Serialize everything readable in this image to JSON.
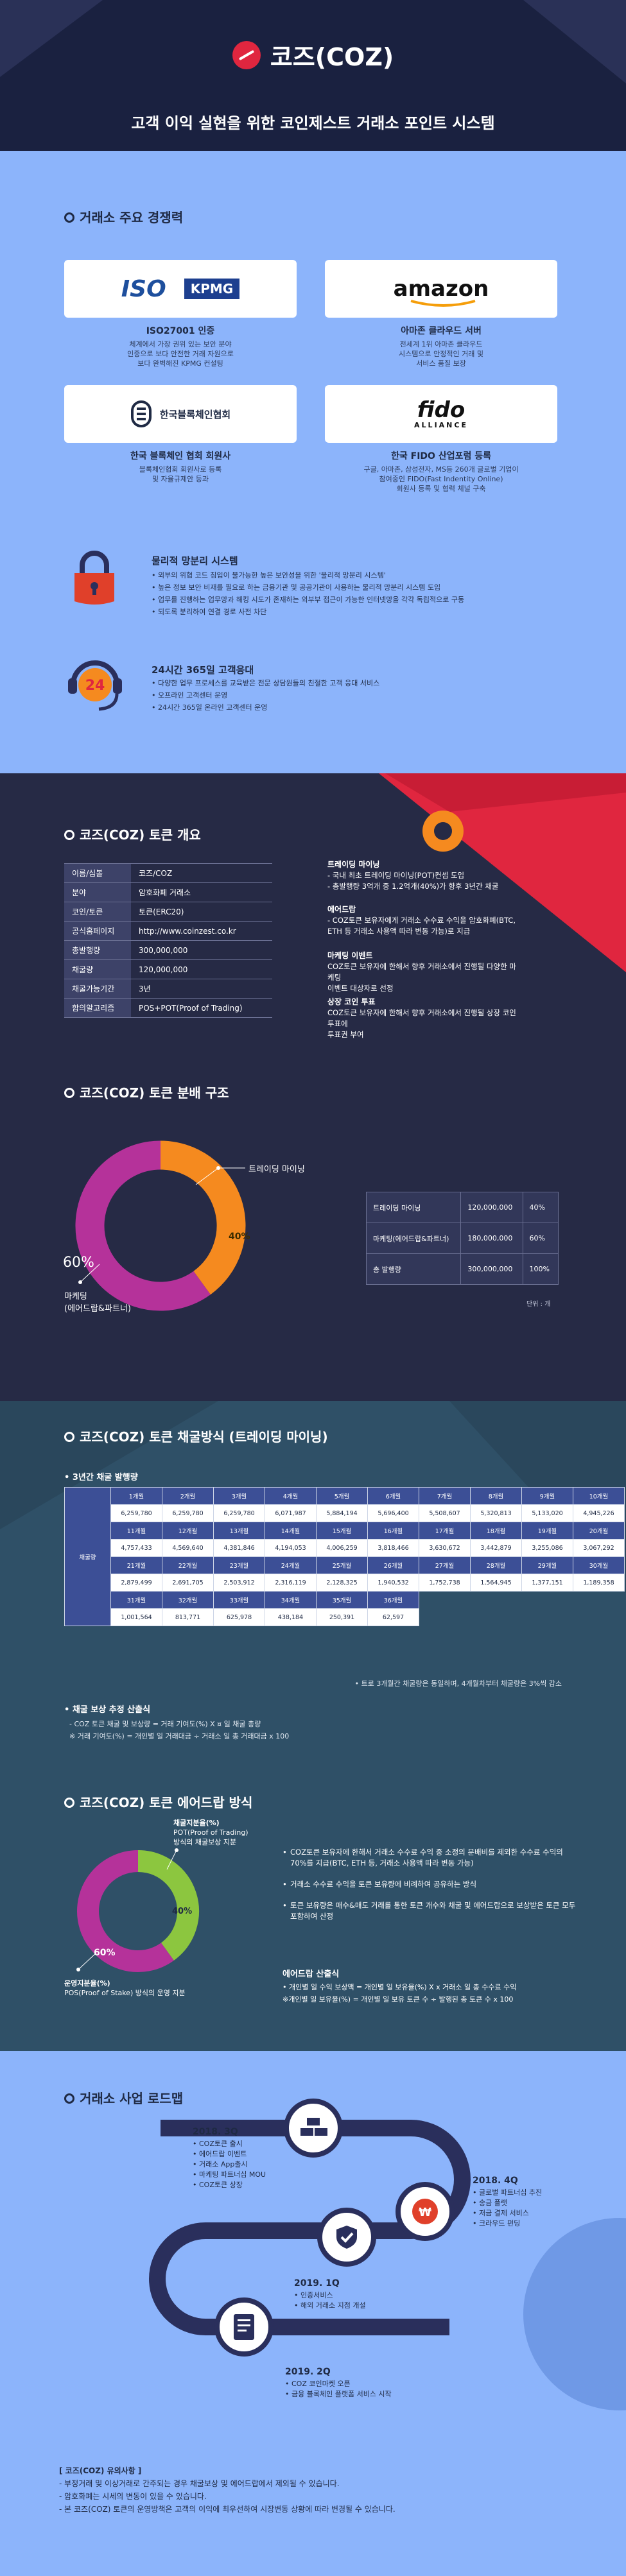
{
  "header": {
    "logo": "코즈(COZ)",
    "subtitle": "고객 이익 실현을 위한 코인제스트 거래소 포인트 시스템"
  },
  "exchange": {
    "title": "거래소 주요 경쟁력",
    "cards": [
      {
        "logo": "ISO",
        "logo2": "KPMG",
        "title": "ISO27001 인증",
        "desc": [
          "체계에서 가장 권위 있는 보안 분야",
          "인증으로 보다 안전한 거래 자원으로",
          "보다 완벽해진 KPMG 컨설팅"
        ]
      },
      {
        "logo": "amazon",
        "title": "아마존 클라우드 서버",
        "desc": [
          "전세계 1위 아마존 클라우드",
          "시스템으로 안정적인 거래 및",
          "서비스 품질 보장"
        ]
      },
      {
        "logo": "한국블록체인협회",
        "title": "한국 블록체인 협회 회원사",
        "desc": [
          "블록체인협회 회원사로 등록",
          "및 자율규제안 등과"
        ]
      },
      {
        "logo": "fido",
        "logo2": "ALLIANCE",
        "title": "한국 FIDO 산업포럼 등록",
        "desc": [
          "구글, 아마존, 삼성전자, MS등 260개 글로벌 기업이",
          "참여중인 FIDO(Fast Indentity Online)",
          "회원사 등록 및 협력 체널 구축"
        ]
      }
    ],
    "security": {
      "title": "물리적 망분리 시스템",
      "items": [
        "외부의 위협 코드 침입이 불가능한 높은 보안성을 위한 '물리적 망분리 시스템'",
        "높은 정보 보안 비재를 필요로 하는 금융기관 및 공공기관이 사용하는 물리적 망분리 시스템 도입",
        "업무를 진행하는 업무망과 해킹 시도가 존재하는 외부부 접근이 가능한 인터넷망을 각각 독립적으로 구동",
        "되도록 분리하여 연결 경로 사전 차단"
      ]
    },
    "support": {
      "title": "24시간 365일 고객응대",
      "badge": "24",
      "items": [
        "다양한 업무 프로세스를 교육받은 전문 상담원들의 친절한 고객 응대 서비스",
        "오프라인 고객센터 운영",
        "24시간 365일 온라인 고객센터 운영"
      ]
    }
  },
  "overview": {
    "title": "코즈(COZ) 토큰 개요",
    "rows": [
      {
        "k": "이름/심볼",
        "v": "코즈/COZ"
      },
      {
        "k": "분야",
        "v": "암호화폐 거래소"
      },
      {
        "k": "코인/토큰",
        "v": "토큰(ERC20)"
      },
      {
        "k": "공식홈페이지",
        "v": "http://www.coinzest.co.kr"
      },
      {
        "k": "총발행량",
        "v": "300,000,000"
      },
      {
        "k": "채굴량",
        "v": "120,000,000"
      },
      {
        "k": "채굴가능기간",
        "v": "3년"
      },
      {
        "k": "합의알고리즘",
        "v": "POS+POT(Proof of Trading)"
      }
    ],
    "blocks": [
      {
        "h": "트레이딩 마이닝",
        "lines": [
          "- 국내 최초 트레이딩 마이닝(POT)컨셉 도입",
          "- 총발행량 3억개 중 1.2억개(40%)가 향후 3년간 채굴"
        ]
      },
      {
        "h": "에어드랍",
        "lines": [
          "- COZ토큰 보유자에게 거래소 수수료 수익을 암호화폐(BTC,",
          "  ETH 등 거래소 사용액 따라 변동 가능)로 지급"
        ]
      },
      {
        "h": "마케팅 이벤트",
        "lines": [
          "COZ토큰 보유자에 한해서 향후 거래소에서 진행될 다양한 마케팅",
          "이벤트 대상자로 선정"
        ]
      },
      {
        "h": "상장 코인 투표",
        "lines": [
          "COZ토큰 보유자에 한해서 향후 거래소에서 진행될 상장 코인 투표에",
          "투표권 부여"
        ]
      }
    ]
  },
  "distribution": {
    "title": "코즈(COZ) 토큰 분배 구조",
    "label_trading": "트레이딩 마이닝",
    "label_marketing": "마케팅",
    "label_marketing2": "(에어드랍&파트너)",
    "pct_trading": "40%",
    "pct_marketing": "60%",
    "rows": [
      {
        "name": "트레이딩 마이닝",
        "amount": "120,000,000",
        "pct": "40%"
      },
      {
        "name": "마케팅(에어드랍&파트너)",
        "amount": "180,000,000",
        "pct": "60%"
      },
      {
        "name": "총 발행량",
        "amount": "300,000,000",
        "pct": "100%"
      }
    ],
    "unit": "단위 : 개"
  },
  "chart_data": {
    "type": "pie",
    "categories": [
      "트레이딩 마이닝",
      "마케팅(에어드랍&파트너)"
    ],
    "values": [
      40,
      60
    ],
    "colors": [
      "#f58a1f",
      "#b5329a"
    ]
  },
  "mining": {
    "title": "코즈(COZ) 토큰 채굴방식 (트레이딩 마이닝)",
    "plan_title": "3년간 채굴 발행량",
    "side_label": "채굴량",
    "groups": [
      {
        "months": [
          "1개월",
          "2개월",
          "3개월",
          "4개월",
          "5개월",
          "6개월",
          "7개월",
          "8개월",
          "9개월",
          "10개월"
        ],
        "values": [
          "6,259,780",
          "6,259,780",
          "6,259,780",
          "6,071,987",
          "5,884,194",
          "5,696,400",
          "5,508,607",
          "5,320,813",
          "5,133,020",
          "4,945,226"
        ]
      },
      {
        "months": [
          "11개월",
          "12개월",
          "13개월",
          "14개월",
          "15개월",
          "16개월",
          "17개월",
          "18개월",
          "19개월",
          "20개월"
        ],
        "values": [
          "4,757,433",
          "4,569,640",
          "4,381,846",
          "4,194,053",
          "4,006,259",
          "3,818,466",
          "3,630,672",
          "3,442,879",
          "3,255,086",
          "3,067,292"
        ]
      },
      {
        "months": [
          "21개월",
          "22개월",
          "23개월",
          "24개월",
          "25개월",
          "26개월",
          "27개월",
          "28개월",
          "29개월",
          "30개월"
        ],
        "values": [
          "2,879,499",
          "2,691,705",
          "2,503,912",
          "2,316,119",
          "2,128,325",
          "1,940,532",
          "1,752,738",
          "1,564,945",
          "1,377,151",
          "1,189,358"
        ]
      },
      {
        "months": [
          "31개월",
          "32개월",
          "33개월",
          "34개월",
          "35개월",
          "36개월"
        ],
        "values": [
          "1,001,564",
          "813,771",
          "625,978",
          "438,184",
          "250,391",
          "62,597"
        ]
      }
    ],
    "footnote": "• 트로 3개월간 채굴량은 동일하며, 4개월차부터 채굴량은 3%씩 감소",
    "reward_title": "채굴 보상 추정 산출식",
    "reward_lines": [
      "- COZ 토큰 채굴 및 보상량 = 거래 기여도(%) X ¤ 일 채굴 총량",
      "  ※ 거래 기여도(%) = 개인별 일 거래대금 ÷ 거래소 일 총 거래대금 x 100"
    ]
  },
  "airdrop": {
    "title": "코즈(COZ) 토큰 에어드랍 방식",
    "label_top": "채굴지분율(%)",
    "label_top2": "POT(Proof of Trading)",
    "label_top3": "방식의 채굴보상 지분",
    "label_bottom": "운영지분율(%)",
    "label_bottom2": "POS(Proof of Stake) 방식의 운영 지분",
    "pct_green": "40%",
    "pct_purple": "60%",
    "items": [
      "COZ토큰 보유자에 한해서 거래소 수수료 수익 중 소정의 분배비를 제외한 수수료 수익의 70%를 지급(BTC, ETH 등, 거래소 사용액 따라 변동 가능)",
      "거래소 수수료 수익을 토큰 보유량에 비례하여 공유하는 방식",
      "토큰 보유량은 매수&매도 거래를 통한 토큰 개수와 채굴 및 에어드랍으로 보상받은 토큰 모두 포함하여 산정"
    ],
    "calc_title": "에어드랍 산출식",
    "calc_lines": [
      "• 개인별 일 수익 보상액 = 개인별 일 보유율(%) X  x 거래소 일 총 수수료 수익",
      "  ※개인별 일 보유율(%) = 개인별 일 보유 토큰 수 ÷ 발행된 총 토큰 수 x 100"
    ]
  },
  "roadmap": {
    "title": "거래소 사업 로드맵",
    "steps": [
      {
        "h": "2018. 3Q",
        "lines": [
          "COZ토큰 출시",
          "에어드랍 이벤트",
          "거래소 App출시",
          "마케팅 파트너십 MOU",
          "COZ토큰 상장"
        ]
      },
      {
        "h": "2018. 4Q",
        "lines": [
          "글로벌 파트너십 추진",
          "송금 플랫",
          "저금 결제 서비스",
          "크라우드 펀딩"
        ]
      },
      {
        "h": "2019. 1Q",
        "lines": [
          "인증서비스",
          "해외 거래소 지점 개설"
        ]
      },
      {
        "h": "2019. 2Q",
        "lines": [
          "COZ 코인마켓 오픈",
          "금융 블록체인 플랫폼 서비스 시작"
        ]
      }
    ]
  },
  "footer": {
    "title": "[ 코즈(COZ) 유의사항 ]",
    "lines": [
      "- 부정거래 및 이상거래로 간주되는 경우 채굴보상 및 에어드랍에서 제외될 수 있습니다.",
      "- 암호화폐는 시세의 변동이 있을 수 있습니다.",
      "- 본 코즈(COZ) 토큰의 운영방책은 고객의 이익에 최우선하여 시장변동 상황에 따라 변경될 수 있습니다."
    ]
  }
}
